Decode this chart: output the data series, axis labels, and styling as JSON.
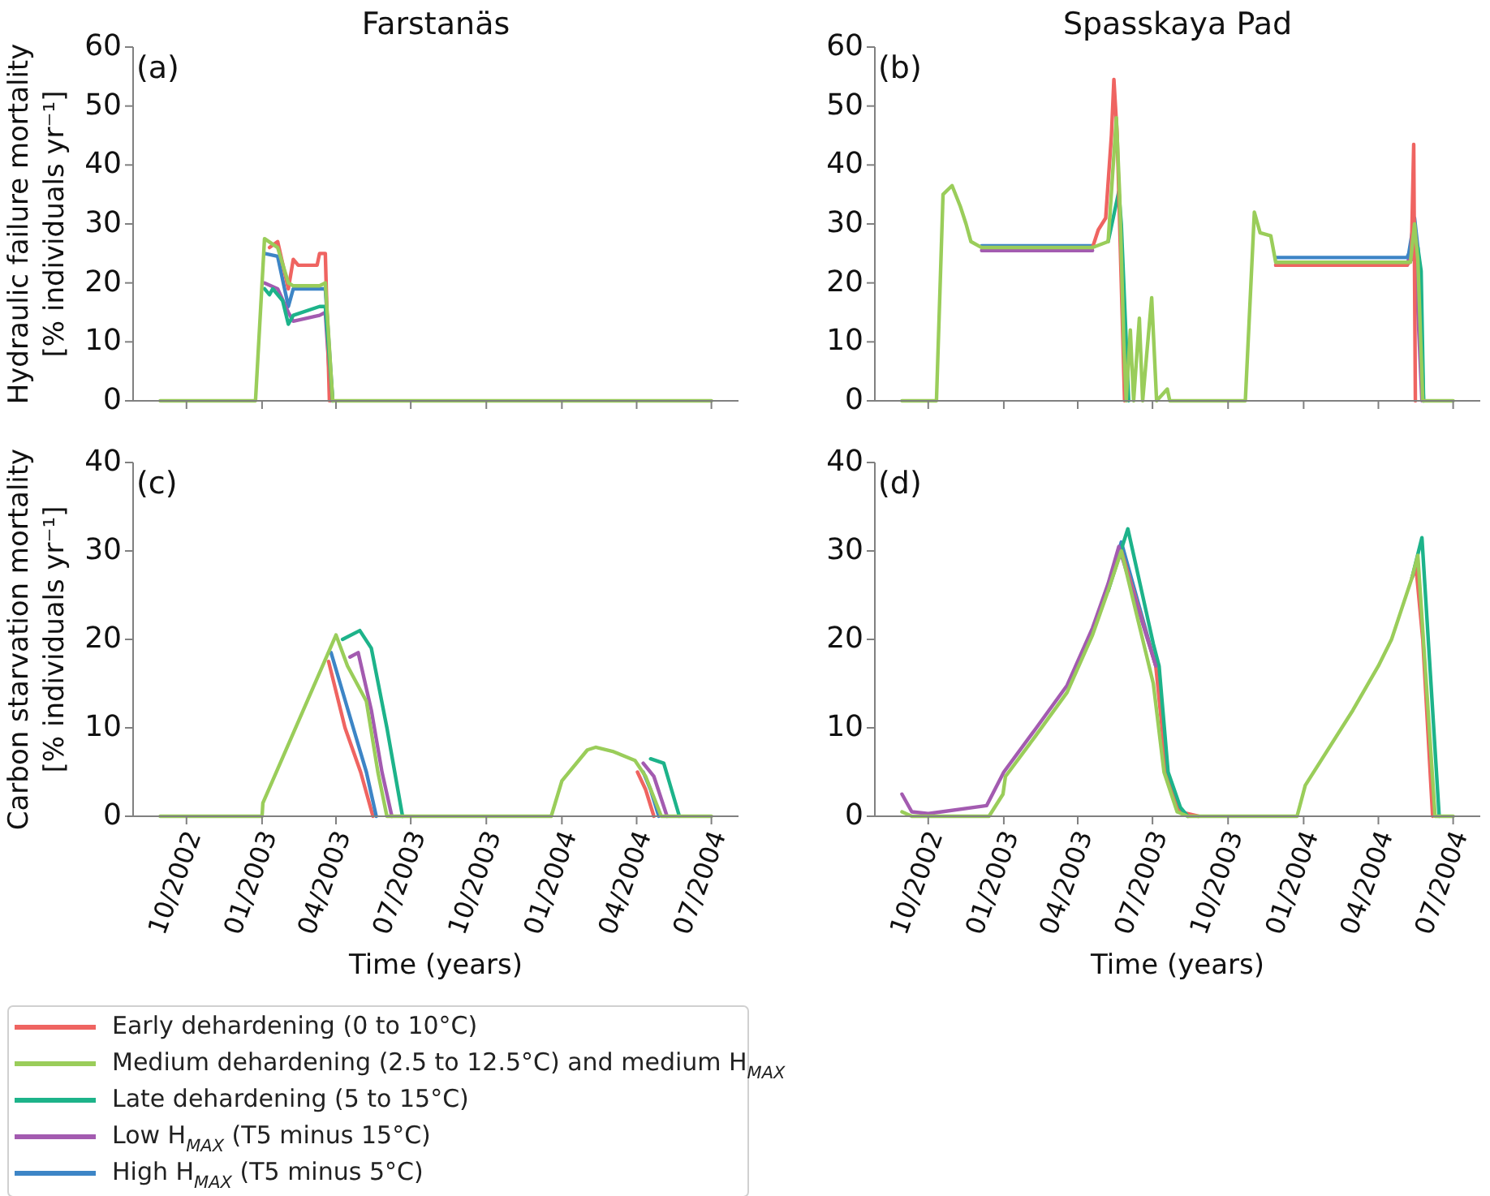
{
  "chart_data": [
    {
      "type": "line",
      "title": "Farstanäs",
      "ylabel": "Hydraulic failure mortality\n[% individuals yr⁻¹]",
      "annotations": [
        "(a)"
      ],
      "xlim": [
        "2002-07-28",
        "2004-08-03"
      ],
      "xticks": [
        {
          "value": "2002-10",
          "label": null
        },
        {
          "value": "2003-01",
          "label": null
        },
        {
          "value": "2003-04",
          "label": null
        },
        {
          "value": "2003-07",
          "label": null
        },
        {
          "value": "2003-10",
          "label": null
        },
        {
          "value": "2004-01",
          "label": null
        },
        {
          "value": "2004-04",
          "label": null
        },
        {
          "value": "2004-07",
          "label": null
        }
      ],
      "ylim": [
        0,
        60
      ],
      "yticks": [
        0,
        10,
        20,
        30,
        40,
        50,
        60
      ],
      "tick_labels": "y",
      "series": [
        {
          "color": "#ef6461",
          "x": [
            "2003-01-10",
            "2003-01-20",
            "2003-02-02",
            "2003-02-08",
            "2003-02-14",
            "2003-03-09",
            "2003-03-12",
            "2003-03-19",
            "2003-03-24"
          ],
          "values": [
            26,
            27,
            19,
            24,
            23,
            23,
            25,
            25,
            0
          ]
        },
        {
          "color": "#9acd5a",
          "x": [
            "2002-08-30",
            "2002-12-24",
            "2003-01-04",
            "2003-01-20",
            "2003-02-02",
            "2003-02-08",
            "2003-03-12",
            "2003-03-19",
            "2003-03-28",
            "2004-07-01"
          ],
          "values": [
            0,
            0,
            27.5,
            26,
            20,
            19.5,
            19.5,
            20,
            0,
            0
          ]
        },
        {
          "color": "#1db38a",
          "x": [
            "2003-01-04",
            "2003-01-10",
            "2003-01-14",
            "2003-01-26",
            "2003-02-02",
            "2003-02-08",
            "2003-03-12",
            "2003-03-19",
            "2003-03-28"
          ],
          "values": [
            19,
            18,
            19,
            17,
            13,
            14.5,
            16,
            16,
            0
          ]
        },
        {
          "color": "#a35bb0",
          "x": [
            "2003-01-04",
            "2003-01-20",
            "2003-02-02",
            "2003-02-08",
            "2003-03-12",
            "2003-03-19",
            "2003-03-26"
          ],
          "values": [
            20,
            19,
            15,
            13.5,
            14.5,
            15,
            0
          ]
        },
        {
          "color": "#3d85c6",
          "x": [
            "2003-01-04",
            "2003-01-20",
            "2003-02-02",
            "2003-02-08",
            "2003-03-19",
            "2003-03-28"
          ],
          "values": [
            25,
            24.5,
            16,
            19,
            19,
            0
          ]
        }
      ]
    },
    {
      "type": "line",
      "title": "Spasskaya Pad",
      "annotations": [
        "(b)"
      ],
      "xlim": [
        "2002-07-28",
        "2004-08-03"
      ],
      "xticks": [
        {
          "value": "2002-10",
          "label": null
        },
        {
          "value": "2003-01",
          "label": null
        },
        {
          "value": "2003-04",
          "label": null
        },
        {
          "value": "2003-07",
          "label": null
        },
        {
          "value": "2003-10",
          "label": null
        },
        {
          "value": "2004-01",
          "label": null
        },
        {
          "value": "2004-04",
          "label": null
        },
        {
          "value": "2004-07",
          "label": null
        }
      ],
      "ylim": [
        0,
        60
      ],
      "yticks": [
        0,
        10,
        20,
        30,
        40,
        50,
        60
      ],
      "tick_labels": "y",
      "series": [
        {
          "color": "#ef6461",
          "x": [
            "2003-04-19",
            "2003-04-26",
            "2003-05-05",
            "2003-05-12",
            "2003-05-15",
            "2003-05-19",
            "2003-05-24",
            "2003-05-28",
            "2003-09-01",
            "2003-11-28",
            "2004-05-06",
            "2004-05-11",
            "2004-05-14",
            "2004-05-16"
          ],
          "values": [
            26,
            29,
            31,
            45,
            54.5,
            45,
            20,
            0,
            null,
            23,
            23,
            24,
            43.5,
            0
          ]
        },
        {
          "color": "#9acd5a",
          "x": [
            "2002-08-30",
            "2002-10-11",
            "2002-10-19",
            "2002-10-30",
            "2002-11-09",
            "2002-11-16",
            "2002-11-22",
            "2002-12-05",
            "2003-04-19",
            "2003-05-08",
            "2003-05-18",
            "2003-05-22",
            "2003-05-27",
            "2003-05-30",
            "2003-06-04",
            "2003-06-08",
            "2003-06-15",
            "2003-06-19",
            "2003-06-30",
            "2003-07-06",
            "2003-07-19",
            "2003-07-22",
            "2003-10-22",
            "2003-11-02",
            "2003-11-09",
            "2003-11-22",
            "2003-11-28",
            "2004-05-06",
            "2004-05-10",
            "2004-05-15",
            "2004-05-19",
            "2004-05-25",
            "2004-07-01"
          ],
          "values": [
            0,
            0,
            35,
            36.5,
            33,
            30,
            27,
            26,
            26,
            27,
            48,
            35,
            10,
            0,
            12,
            0,
            14,
            0,
            17.5,
            0,
            2,
            0,
            0,
            32,
            28.5,
            28,
            23.5,
            23.5,
            23.5,
            30,
            24,
            0,
            0
          ]
        },
        {
          "color": "#1db38a",
          "x": [
            "2003-05-08",
            "2003-05-21",
            "2003-05-24",
            "2003-05-30",
            "2003-06-02",
            "2003-09-01",
            "2004-05-12",
            "2004-05-19",
            "2004-05-23",
            "2004-05-26"
          ],
          "values": [
            27,
            35.5,
            30,
            10,
            0,
            null,
            24,
            26,
            22,
            0
          ]
        },
        {
          "color": "#a35bb0",
          "x": [
            "2002-12-05",
            "2003-04-19",
            "2003-09-01",
            "2003-11-28",
            "2004-05-06",
            "2004-05-15",
            "2004-05-24"
          ],
          "values": [
            25.5,
            25.5,
            null,
            23,
            23,
            28,
            0
          ]
        },
        {
          "color": "#3d85c6",
          "x": [
            "2002-12-05",
            "2003-04-19",
            "2003-09-01",
            "2003-11-28",
            "2004-05-06",
            "2004-05-08",
            "2004-05-15",
            "2004-05-19",
            "2004-05-26"
          ],
          "values": [
            26.3,
            26.3,
            null,
            24.3,
            24.3,
            25,
            31,
            26,
            0
          ]
        }
      ]
    },
    {
      "type": "line",
      "xlabel": "Time (years)",
      "ylabel": "Carbon starvation mortality\n[% individuals yr⁻¹]",
      "annotations": [
        "(c)"
      ],
      "legend": "bottom left",
      "xlim": [
        "2002-07-28",
        "2004-08-03"
      ],
      "xticks": [
        {
          "value": "2002-10",
          "label": "10/2002"
        },
        {
          "value": "2003-01",
          "label": "01/2003"
        },
        {
          "value": "2003-04",
          "label": "04/2003"
        },
        {
          "value": "2003-07",
          "label": "07/2003"
        },
        {
          "value": "2003-10",
          "label": "10/2003"
        },
        {
          "value": "2004-01",
          "label": "01/2004"
        },
        {
          "value": "2004-04",
          "label": "04/2004"
        },
        {
          "value": "2004-07",
          "label": "07/2004"
        }
      ],
      "ylim": [
        0,
        40
      ],
      "yticks": [
        0,
        10,
        20,
        30,
        40
      ],
      "series": [
        {
          "name": "Early dehardening (0 to 10°C)",
          "color": "#ef6461",
          "x": [
            "2003-03-23",
            "2003-04-12",
            "2003-05-01",
            "2003-05-16",
            "2003-09-01",
            "2004-04-02",
            "2004-04-12",
            "2004-04-22"
          ],
          "values": [
            17.5,
            10,
            5,
            0,
            null,
            5,
            3,
            0
          ]
        },
        {
          "name": "Medium dehardening (2.5 to 12.5°C) and medium H$_{MAX}$",
          "color": "#9acd5a",
          "x": [
            "2002-08-30",
            "2003-01-01",
            "2003-01-02",
            "2003-04-01",
            "2003-04-15",
            "2003-05-08",
            "2003-05-22",
            "2003-06-02",
            "2003-12-19",
            "2004-01-01",
            "2004-02-01",
            "2004-02-11",
            "2004-03-04",
            "2004-03-30",
            "2004-04-12",
            "2004-05-01",
            "2004-07-01"
          ],
          "values": [
            0,
            0,
            1.5,
            20.5,
            17,
            13,
            5,
            0,
            0,
            4,
            7.5,
            7.8,
            7.3,
            6.3,
            4.5,
            0,
            0
          ]
        },
        {
          "name": "Late dehardening (5 to 15°C)",
          "color": "#1db38a",
          "x": [
            "2003-04-09",
            "2003-04-30",
            "2003-05-14",
            "2003-06-02",
            "2003-06-21",
            "2003-09-01",
            "2004-04-18",
            "2004-05-04",
            "2004-05-23"
          ],
          "values": [
            20,
            21,
            19,
            10,
            0,
            null,
            6.5,
            6,
            0
          ]
        },
        {
          "name": "Low H$_{MAX}$ (T5 minus 15°C)",
          "color": "#a35bb0",
          "x": [
            "2003-04-18",
            "2003-04-28",
            "2003-05-14",
            "2003-05-27",
            "2003-06-08",
            "2003-09-01",
            "2004-04-09",
            "2004-04-22",
            "2004-05-08"
          ],
          "values": [
            18,
            18.5,
            12,
            5,
            0,
            null,
            6,
            4.5,
            0
          ]
        },
        {
          "name": "High H$_{MAX}$ (T5 minus 5°C)",
          "color": "#3d85c6",
          "x": [
            "2003-03-26",
            "2003-04-22",
            "2003-05-08",
            "2003-05-20",
            "2003-09-01",
            "2004-04-09",
            "2004-04-18",
            "2004-04-28"
          ],
          "values": [
            18.5,
            10,
            5,
            0,
            null,
            5,
            3,
            0
          ]
        }
      ]
    },
    {
      "type": "line",
      "xlabel": "Time (years)",
      "annotations": [
        "(d)"
      ],
      "xlim": [
        "2002-07-28",
        "2004-08-03"
      ],
      "xticks": [
        {
          "value": "2002-10",
          "label": "10/2002"
        },
        {
          "value": "2003-01",
          "label": "01/2003"
        },
        {
          "value": "2003-04",
          "label": "04/2003"
        },
        {
          "value": "2003-07",
          "label": "07/2003"
        },
        {
          "value": "2003-10",
          "label": "10/2003"
        },
        {
          "value": "2004-01",
          "label": "01/2004"
        },
        {
          "value": "2004-04",
          "label": "04/2004"
        },
        {
          "value": "2004-07",
          "label": "07/2004"
        }
      ],
      "ylim": [
        0,
        40
      ],
      "yticks": [
        0,
        10,
        20,
        30,
        40
      ],
      "series": [
        {
          "color": "#ef6461",
          "x": [
            "2003-05-24",
            "2003-07-05",
            "2003-07-18",
            "2003-08-04",
            "2003-08-26",
            "2003-11-01",
            "2004-05-12",
            "2004-05-17",
            "2004-05-25",
            "2004-06-06"
          ],
          "values": [
            30,
            17,
            5,
            0.5,
            0,
            null,
            27,
            28,
            20,
            0
          ]
        },
        {
          "color": "#9acd5a",
          "x": [
            "2002-08-30",
            "2002-09-11",
            "2002-12-14",
            "2002-12-31",
            "2003-01-03",
            "2003-02-08",
            "2003-03-19",
            "2003-04-19",
            "2003-05-08",
            "2003-05-24",
            "2003-07-02",
            "2003-07-15",
            "2003-07-31",
            "2003-08-13",
            "2003-12-24",
            "2004-01-03",
            "2004-03-01",
            "2004-04-01",
            "2004-04-17",
            "2004-05-12",
            "2004-05-19",
            "2004-06-09",
            "2004-07-01"
          ],
          "values": [
            0.5,
            0,
            0,
            2.5,
            4.5,
            9,
            14,
            20.5,
            25.5,
            30,
            15,
            5,
            0.5,
            0,
            0,
            3.5,
            12,
            17,
            20,
            27,
            29.5,
            0,
            0
          ]
        },
        {
          "color": "#1db38a",
          "x": [
            "2003-05-08",
            "2003-06-01",
            "2003-07-02",
            "2003-07-09",
            "2003-07-20",
            "2003-08-04",
            "2003-08-13",
            "2003-11-01",
            "2004-05-12",
            "2004-05-24",
            "2004-06-14"
          ],
          "values": [
            25.5,
            32.5,
            19.5,
            17,
            5,
            1,
            0,
            null,
            27,
            31.5,
            0
          ]
        },
        {
          "color": "#a35bb0",
          "x": [
            "2002-08-30",
            "2002-09-11",
            "2002-10-01",
            "2002-12-11",
            "2003-01-01",
            "2003-02-08",
            "2003-03-19",
            "2003-04-19",
            "2003-05-08",
            "2003-05-21",
            "2003-07-05"
          ],
          "values": [
            2.5,
            0.5,
            0.3,
            1.2,
            5,
            9.8,
            14.8,
            21.3,
            26.3,
            30.5,
            17
          ]
        },
        {
          "color": "#3d85c6",
          "x": [
            "2003-05-08",
            "2003-05-24",
            "2003-07-05"
          ],
          "values": [
            25.5,
            31,
            17
          ]
        }
      ]
    }
  ]
}
